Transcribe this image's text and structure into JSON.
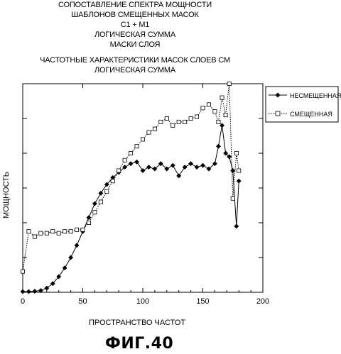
{
  "header": {
    "title_lines": [
      "СОПОСТАВЛЕНИЕ СПЕКТРА МОЩНОСТИ",
      "ШАБЛОНОВ СМЕЩЕННЫХ МАСОК",
      "C1 + M1",
      "ЛОГИЧЕСКАЯ СУММА",
      "МАСКИ СЛОЯ"
    ],
    "subtitle_lines": [
      "ЧАСТОТНЫЕ ХАРАКТЕРИСТИКИ МАСОК СЛОЕВ СМ",
      "ЛОГИЧЕСКАЯ СУММА"
    ]
  },
  "figure_label": "ФИГ.40",
  "chart_data": {
    "type": "line",
    "xlabel": "ПРОСТРАНСТВО ЧАСТОТ",
    "ylabel": "МОЩНОСТЬ",
    "xlim": [
      0,
      200
    ],
    "ylim": [
      0,
      6
    ],
    "xticks": [
      0,
      50,
      100,
      150,
      200
    ],
    "yticks_labeled": false,
    "legend_position": "right",
    "series": [
      {
        "name": "НЕСМЕЩЕННАЯ",
        "marker": "filled-diamond",
        "line": "solid",
        "x": [
          0,
          5,
          10,
          15,
          20,
          25,
          30,
          35,
          40,
          45,
          50,
          55,
          60,
          65,
          70,
          75,
          80,
          85,
          90,
          95,
          100,
          105,
          110,
          115,
          120,
          125,
          130,
          135,
          140,
          145,
          150,
          155,
          160,
          163,
          166,
          169,
          172,
          175,
          178,
          180
        ],
        "y": [
          0.02,
          0.02,
          0.03,
          0.05,
          0.12,
          0.25,
          0.45,
          0.7,
          1.0,
          1.35,
          1.75,
          2.15,
          2.55,
          2.85,
          3.1,
          3.3,
          3.45,
          3.6,
          3.7,
          3.75,
          3.5,
          3.6,
          3.55,
          3.7,
          3.55,
          3.65,
          3.35,
          3.6,
          3.7,
          3.6,
          3.65,
          3.55,
          3.7,
          4.2,
          4.8,
          4.0,
          3.9,
          3.5,
          1.9,
          3.2
        ]
      },
      {
        "name": "СМЕЩЕННАЯ",
        "marker": "open-square",
        "line": "dotted",
        "x": [
          0,
          5,
          10,
          15,
          20,
          25,
          30,
          35,
          40,
          45,
          50,
          55,
          60,
          65,
          70,
          75,
          80,
          85,
          90,
          95,
          100,
          105,
          110,
          115,
          120,
          125,
          130,
          135,
          140,
          145,
          150,
          155,
          160,
          163,
          166,
          169,
          172,
          175,
          178,
          180
        ],
        "y": [
          0.6,
          1.75,
          1.6,
          1.7,
          1.7,
          1.75,
          1.7,
          1.75,
          1.75,
          1.8,
          1.8,
          2.0,
          2.3,
          2.6,
          2.9,
          3.2,
          3.5,
          3.8,
          4.0,
          4.2,
          4.4,
          4.6,
          4.7,
          4.9,
          5.0,
          4.8,
          4.9,
          4.9,
          5.0,
          5.05,
          5.3,
          5.4,
          5.2,
          4.9,
          5.6,
          5.1,
          6.0,
          2.7,
          4.0,
          3.5
        ]
      }
    ]
  }
}
